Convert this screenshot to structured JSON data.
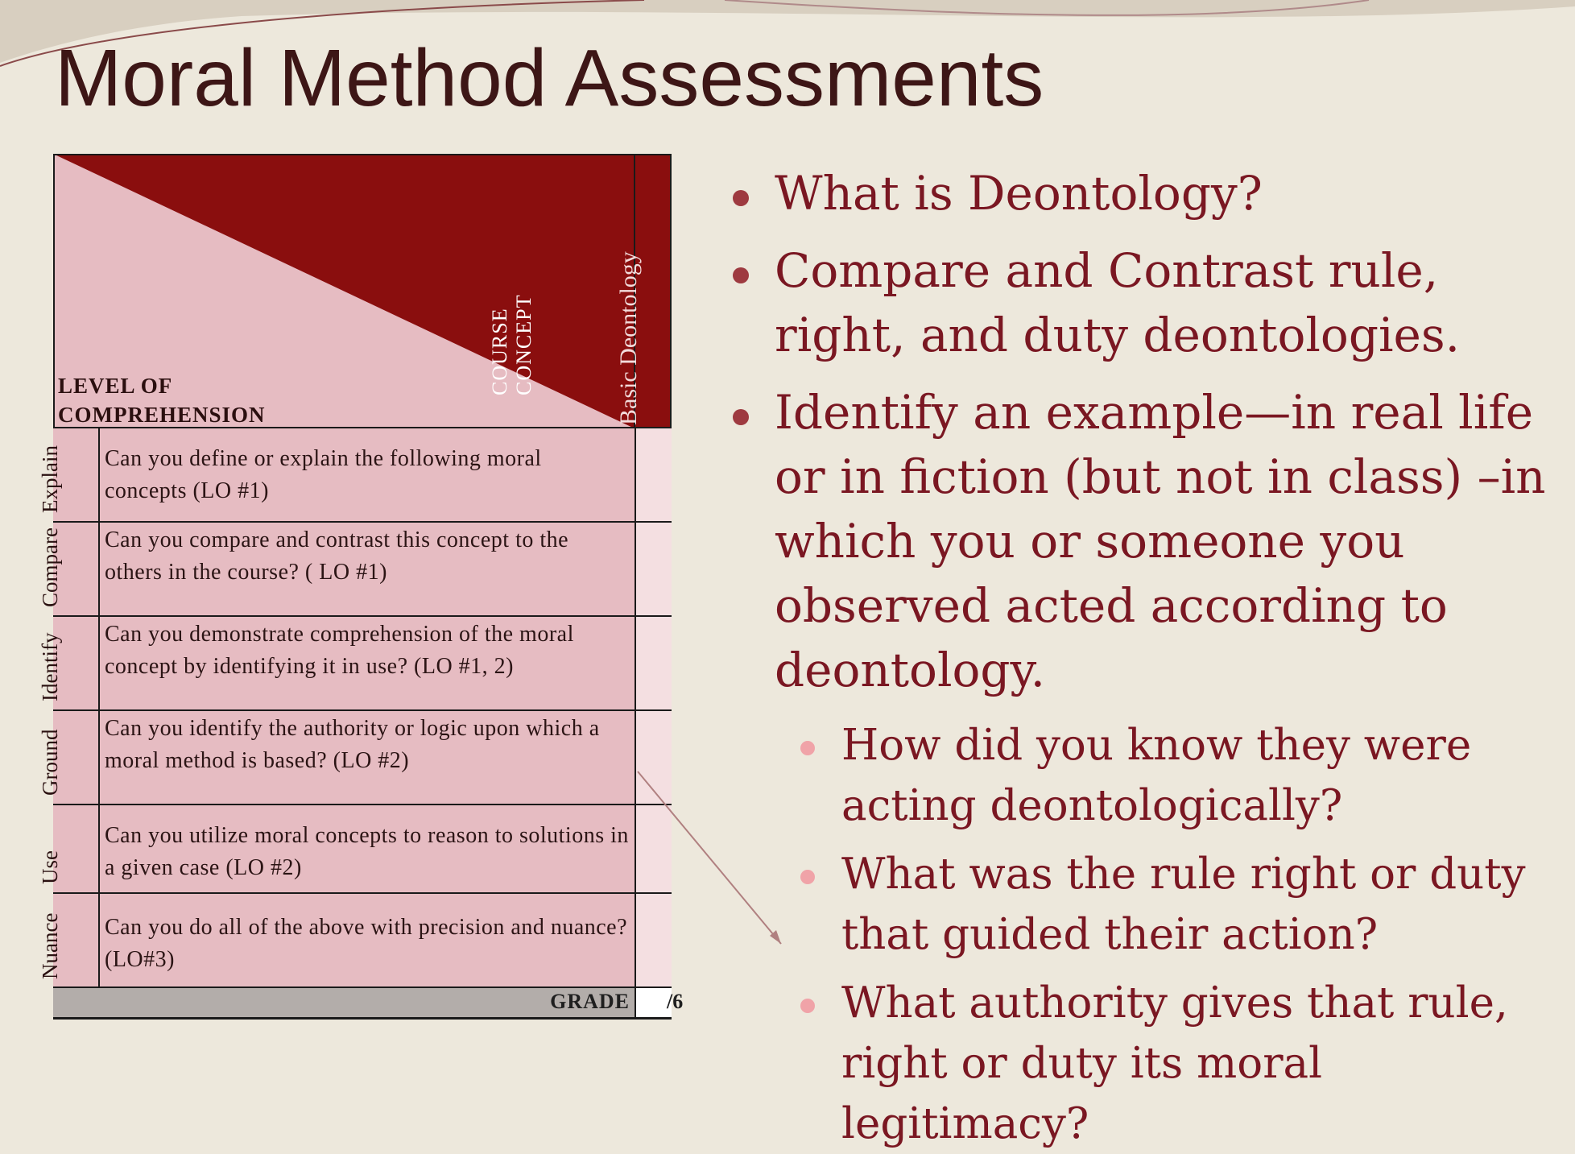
{
  "slide": {
    "title": "Moral Method Assessments"
  },
  "rubric": {
    "course_concept_line1": "COURSE",
    "course_concept_line2": "CONCEPT",
    "level_line1": "LEVEL OF",
    "level_line2": "COMPREHENSION",
    "column_label": "Basic Deontology",
    "rows": [
      {
        "level": "Explain",
        "question": "Can you define or explain the following moral concepts (LO #1)"
      },
      {
        "level": "Compare",
        "question": "Can you compare and contrast this concept to the others in the course? ( LO #1)"
      },
      {
        "level": "Identify",
        "question": "Can you demonstrate comprehension of the moral concept by identifying it in use? (LO #1, 2)"
      },
      {
        "level": "Ground",
        "question": "Can you identify the authority or logic upon which a moral method is based? (LO #2)"
      },
      {
        "level": "Use",
        "question": "Can you utilize moral concepts to reason to solutions in a given case (LO #2)"
      },
      {
        "level": "Nuance",
        "question": "Can you do all of the above with precision and nuance? (LO#3)"
      }
    ],
    "grade_label": "GRADE",
    "grade_value": "/6"
  },
  "bullets": [
    {
      "text": "What is Deontology?"
    },
    {
      "text": "Compare and Contrast rule, right, and duty deontologies."
    },
    {
      "text": "Identify an example—in real life or in fiction (but not in class) –in which you or someone you observed acted according to deontology."
    }
  ],
  "sub_bullets": [
    {
      "text": "How did you know they were acting deontologically?"
    },
    {
      "text": "What was the rule right or duty that guided their action?"
    },
    {
      "text": "What authority gives that rule, right or duty its moral legitimacy?"
    }
  ],
  "colors": {
    "background": "#ede8dc",
    "accent_dark": "#8a0e0e",
    "accent_pink": "#e6bcc2",
    "text_red": "#7a1722"
  }
}
